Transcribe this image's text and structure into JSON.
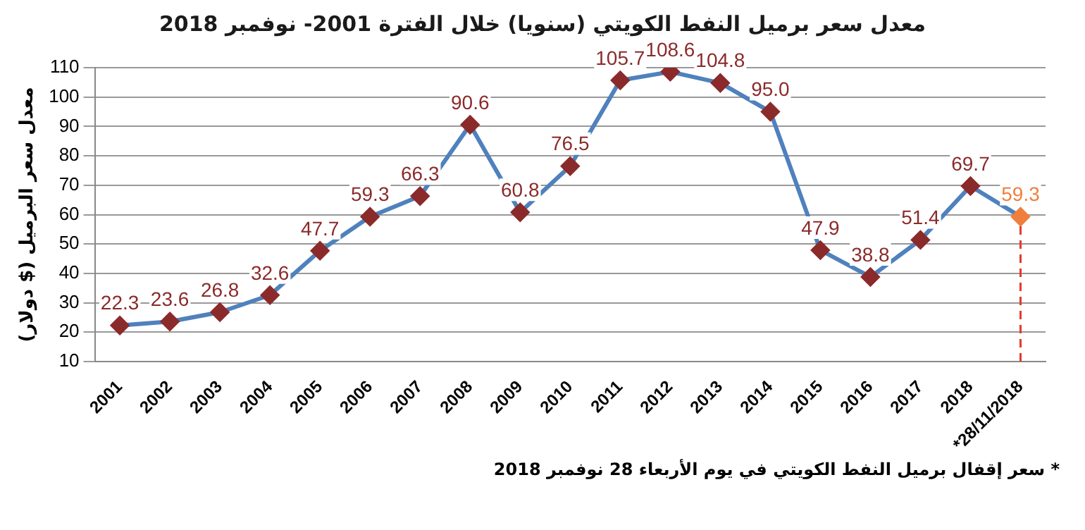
{
  "chart_data": {
    "type": "line",
    "title": "معدل سعر برميل النفط الكويتي (سنويا) خلال الفترة 2001- نوفمبر 2018",
    "ylabel": "معدل سعر البرميل ($ دولار)",
    "annotations": [
      "* سعر إقفال برميل النفط الكويتي في يوم الأربعاء 28 نوفمبر 2018"
    ],
    "categories": [
      "2001",
      "2002",
      "2003",
      "2004",
      "2005",
      "2006",
      "2007",
      "2008",
      "2009",
      "2010",
      "2011",
      "2012",
      "2013",
      "2014",
      "2015",
      "2016",
      "2017",
      "2018",
      "*28/11/2018"
    ],
    "series": [
      {
        "color": "#4f81bd",
        "values": [
          22.3,
          23.6,
          26.8,
          32.6,
          47.7,
          59.3,
          66.3,
          90.6,
          60.8,
          76.5,
          105.7,
          108.6,
          104.8,
          95.0,
          47.9,
          38.8,
          51.4,
          69.7,
          59.3
        ],
        "value_labels": [
          "22.3",
          "23.6",
          "26.8",
          "32.6",
          "47.7",
          "59.3",
          "66.3",
          "90.6",
          "60.8",
          "76.5",
          "105.7",
          "108.6",
          "104.8",
          "95.0",
          "47.9",
          "38.8",
          "51.4",
          "69.7",
          "59.3"
        ],
        "colors": [
          "#8b2a2a",
          "#8b2a2a",
          "#8b2a2a",
          "#8b2a2a",
          "#8b2a2a",
          "#8b2a2a",
          "#8b2a2a",
          "#8b2a2a",
          "#8b2a2a",
          "#8b2a2a",
          "#8b2a2a",
          "#8b2a2a",
          "#8b2a2a",
          "#8b2a2a",
          "#8b2a2a",
          "#8b2a2a",
          "#8b2a2a",
          "#8b2a2a",
          "#f07e3c"
        ]
      }
    ],
    "ylim": [
      10,
      110
    ],
    "yticks": [
      10,
      20,
      30,
      40,
      50,
      60,
      70,
      80,
      90,
      100,
      110
    ],
    "grid": "y",
    "marker": "diamond",
    "legend": false,
    "ref_lines": [
      {
        "axis": "x",
        "value": "*28/11/2018",
        "color": "#e03c31",
        "line_style": "dashed"
      }
    ]
  }
}
